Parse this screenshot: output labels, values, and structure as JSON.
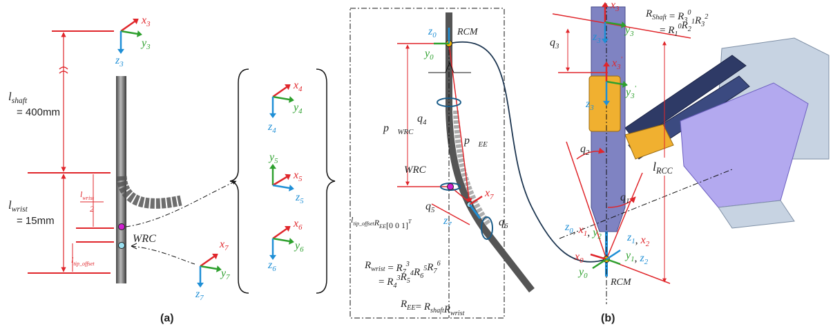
{
  "panel_a": {
    "frame_3": {
      "x": {
        "t": "x",
        "sub": "3"
      },
      "y": {
        "t": "y",
        "sub": "3"
      },
      "z": {
        "t": "z",
        "sub": "3"
      }
    },
    "l_shaft": {
      "t": "l",
      "sub": "shaft"
    },
    "shaft_length": "= 400mm",
    "l_wrist": {
      "t": "l",
      "sub": "wrist"
    },
    "wrist_length": "= 15mm",
    "half_wrist_num": {
      "t": "l",
      "sub": "wrist"
    },
    "half_wrist_den": "2",
    "l_tip_offset": {
      "t": "l",
      "sub": "tip_offset"
    },
    "wrc": "WRC",
    "frame_4": {
      "x": {
        "t": "x",
        "sub": "4"
      },
      "y": {
        "t": "y",
        "sub": "4"
      },
      "z": {
        "t": "z",
        "sub": "4"
      }
    },
    "frame_5": {
      "y": {
        "t": "y",
        "sub": "5"
      },
      "x": {
        "t": "x",
        "sub": "5"
      },
      "z": {
        "t": "z",
        "sub": "5"
      }
    },
    "frame_6": {
      "x": {
        "t": "x",
        "sub": "6"
      },
      "y": {
        "t": "y",
        "sub": "6"
      },
      "z": {
        "t": "z",
        "sub": "6"
      }
    },
    "frame_7": {
      "x": {
        "t": "x",
        "sub": "7"
      },
      "y": {
        "t": "y",
        "sub": "7"
      },
      "z": {
        "t": "z",
        "sub": "7"
      }
    },
    "caption": "(a)"
  },
  "panel_b": {
    "frame_0": {
      "z": {
        "t": "z",
        "sub": "0"
      },
      "y": {
        "t": "y",
        "sub": "0"
      }
    },
    "rcm_top": "RCM",
    "q4": {
      "t": "q",
      "sub": "4"
    },
    "p_wrc": {
      "t": "p⃗",
      "sub": "WRC"
    },
    "p_ee": {
      "t": "p⃗",
      "sub": "EE"
    },
    "wrc": "WRC",
    "q5": {
      "t": "q",
      "sub": "5"
    },
    "frame_7": {
      "x": {
        "t": "x",
        "sub": "7"
      },
      "z": {
        "t": "z",
        "sub": "7"
      }
    },
    "q6": {
      "t": "q",
      "sub": "6"
    },
    "tip_expr": [
      {
        "t": "l",
        "sub": "tip_offset"
      },
      {
        "t": "R",
        "sub": "EE"
      },
      {
        "t": "[0 0 1]",
        "sup": "T"
      }
    ],
    "r_wrist_1": [
      {
        "t": "R",
        "sub": "wrist"
      },
      {
        "t": " = "
      },
      {
        "t": "R",
        "sub": "7",
        "sup": "3"
      }
    ],
    "r_wrist_2": [
      {
        "t": "= "
      },
      {
        "t": "R",
        "sub": "4",
        "sup": "3"
      },
      {
        "t": "R",
        "sub": "5",
        "sup": "4"
      },
      {
        "t": "R",
        "sub": "6",
        "sup": "5"
      },
      {
        "t": "R",
        "sub": "7",
        "sup": "6"
      }
    ],
    "r_ee": [
      {
        "t": "R",
        "sub": "EE"
      },
      {
        "t": "= "
      },
      {
        "t": "R",
        "sub": "shaft"
      },
      {
        "t": "R",
        "sub": "wrist"
      }
    ],
    "frame_3": {
      "x": {
        "t": "x",
        "sub": "3"
      },
      "y": {
        "t": "y",
        "sub": "3"
      },
      "z": {
        "t": "z",
        "sub": "3"
      }
    },
    "q3": {
      "t": "q",
      "sub": "3"
    },
    "frame_3p": {
      "x": {
        "t": "x",
        "sub": "3",
        "sup": "'"
      },
      "y": {
        "t": "y",
        "sub": "3",
        "sup": "'"
      },
      "z": {
        "t": "z",
        "sub": "3"
      }
    },
    "r_shaft_1": [
      {
        "t": "R",
        "sub": "Shaft"
      },
      {
        "t": " = "
      },
      {
        "t": "R",
        "sub": "3",
        "sup": "0"
      }
    ],
    "r_shaft_2": [
      {
        "t": "= "
      },
      {
        "t": "R",
        "sub": "1",
        "sup": "0"
      },
      {
        "t": "R",
        "sub": "2",
        "sup": "1"
      },
      {
        "t": "R",
        "sub": "3",
        "sup": "2"
      }
    ],
    "q2": {
      "t": "q",
      "sub": "2"
    },
    "q1": {
      "t": "q",
      "sub": "1"
    },
    "l_rcc": {
      "t": "l",
      "sub": "RCC"
    },
    "labels_left": [
      {
        "t": "z",
        "sub": "0"
      },
      {
        "t": ", "
      },
      {
        "t": "x",
        "sub": "1"
      },
      {
        "t": ", "
      },
      {
        "t": "y",
        "sub": "2"
      }
    ],
    "labels_right_1": [
      {
        "t": "z",
        "sub": "1"
      },
      {
        "t": ", "
      },
      {
        "t": "x",
        "sub": "2"
      }
    ],
    "label_x0": {
      "t": "x",
      "sub": "0"
    },
    "labels_right_2": [
      {
        "t": "y",
        "sub": "1"
      },
      {
        "t": ", "
      },
      {
        "t": "z",
        "sub": "2"
      }
    ],
    "label_y0": {
      "t": "y",
      "sub": "0"
    },
    "rcm_bottom": "RCM",
    "caption": "(b)"
  }
}
